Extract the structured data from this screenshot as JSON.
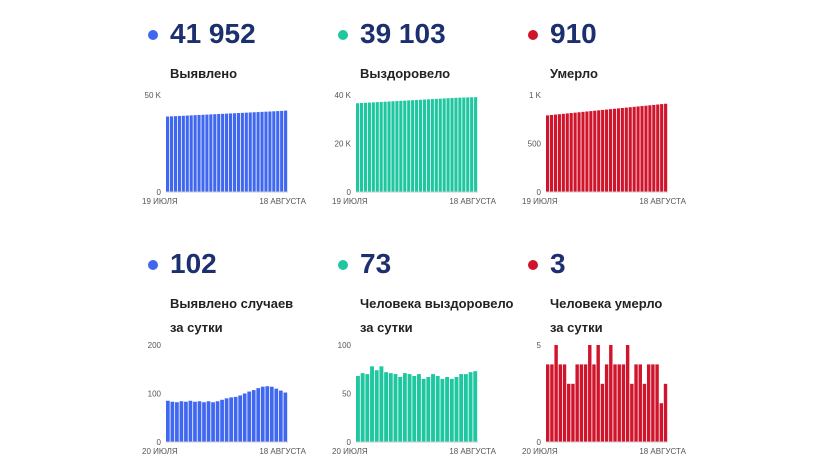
{
  "colors": {
    "blue": "#3f67f0",
    "green": "#1fc7a0",
    "red": "#d0142b"
  },
  "panels": [
    {
      "value": "41 952",
      "label_lines": [
        "Выявлено"
      ]
    },
    {
      "value": "39 103",
      "label_lines": [
        "Выздоровело"
      ]
    },
    {
      "value": "910",
      "label_lines": [
        "Умерло"
      ]
    },
    {
      "value": "102",
      "label_lines": [
        "Выявлено случаев",
        "за сутки"
      ]
    },
    {
      "value": "73",
      "label_lines": [
        "Человека выздоровело",
        "за сутки"
      ]
    },
    {
      "value": "3",
      "label_lines": [
        "Человека умерло",
        "за сутки"
      ]
    }
  ],
  "chart_data": [
    {
      "type": "bar",
      "color": "blue",
      "ylim": [
        0,
        50000
      ],
      "yticks": [
        {
          "v": 0,
          "label": "0"
        },
        {
          "v": 50000,
          "label": "50 K"
        }
      ],
      "xlabels": [
        "19 ИЮЛЯ",
        "18 АВГУСТА"
      ],
      "values": [
        38900,
        39000,
        39100,
        39200,
        39300,
        39400,
        39500,
        39600,
        39700,
        39800,
        39900,
        40000,
        40100,
        40200,
        40300,
        40400,
        40500,
        40600,
        40700,
        40800,
        40900,
        41000,
        41100,
        41200,
        41300,
        41400,
        41500,
        41600,
        41700,
        41800,
        41952
      ]
    },
    {
      "type": "bar",
      "color": "green",
      "ylim": [
        0,
        40000
      ],
      "yticks": [
        {
          "v": 0,
          "label": "0"
        },
        {
          "v": 20000,
          "label": "20 K"
        },
        {
          "v": 40000,
          "label": "40 K"
        }
      ],
      "xlabels": [
        "19 ИЮЛЯ",
        "18 АВГУСТА"
      ],
      "values": [
        36600,
        36690,
        36780,
        36870,
        36960,
        37050,
        37140,
        37230,
        37320,
        37410,
        37500,
        37590,
        37680,
        37770,
        37860,
        37950,
        38040,
        38130,
        38220,
        38310,
        38400,
        38490,
        38580,
        38670,
        38760,
        38850,
        38910,
        38960,
        39010,
        39060,
        39103
      ]
    },
    {
      "type": "bar",
      "color": "red",
      "ylim": [
        0,
        1000
      ],
      "yticks": [
        {
          "v": 0,
          "label": "0"
        },
        {
          "v": 500,
          "label": "500"
        },
        {
          "v": 1000,
          "label": "1 K"
        }
      ],
      "xlabels": [
        "19 ИЮЛЯ",
        "18 АВГУСТА"
      ],
      "values": [
        790,
        794,
        798,
        802,
        806,
        810,
        814,
        818,
        822,
        826,
        830,
        834,
        838,
        842,
        846,
        850,
        854,
        858,
        862,
        866,
        870,
        874,
        878,
        882,
        886,
        890,
        894,
        898,
        902,
        906,
        910
      ]
    },
    {
      "type": "bar",
      "color": "blue",
      "ylim": [
        0,
        200
      ],
      "yticks": [
        {
          "v": 0,
          "label": "0"
        },
        {
          "v": 100,
          "label": "100"
        },
        {
          "v": 200,
          "label": "200"
        }
      ],
      "xlabels": [
        "20 ИЮЛЯ",
        "18 АВГУСТА"
      ],
      "values": [
        85,
        83,
        82,
        84,
        83,
        85,
        83,
        84,
        82,
        84,
        82,
        84,
        87,
        90,
        92,
        93,
        96,
        100,
        104,
        107,
        111,
        114,
        115,
        114,
        110,
        106,
        102
      ]
    },
    {
      "type": "bar",
      "color": "green",
      "ylim": [
        0,
        100
      ],
      "yticks": [
        {
          "v": 0,
          "label": "0"
        },
        {
          "v": 50,
          "label": "50"
        },
        {
          "v": 100,
          "label": "100"
        }
      ],
      "xlabels": [
        "20 ИЮЛЯ",
        "18 АВГУСТА"
      ],
      "values": [
        68,
        71,
        70,
        78,
        74,
        78,
        72,
        71,
        70,
        67,
        71,
        70,
        68,
        70,
        65,
        67,
        70,
        68,
        65,
        67,
        65,
        67,
        70,
        70,
        72,
        73
      ]
    },
    {
      "type": "bar",
      "color": "red",
      "ylim": [
        0,
        5
      ],
      "yticks": [
        {
          "v": 0,
          "label": "0"
        },
        {
          "v": 5,
          "label": "5"
        }
      ],
      "xlabels": [
        "20 ИЮЛЯ",
        "18 АВГУСТА"
      ],
      "values": [
        4,
        4,
        5,
        4,
        4,
        3,
        3,
        4,
        4,
        4,
        5,
        4,
        5,
        3,
        4,
        5,
        4,
        4,
        4,
        5,
        3,
        4,
        4,
        3,
        4,
        4,
        4,
        2,
        3
      ]
    }
  ]
}
